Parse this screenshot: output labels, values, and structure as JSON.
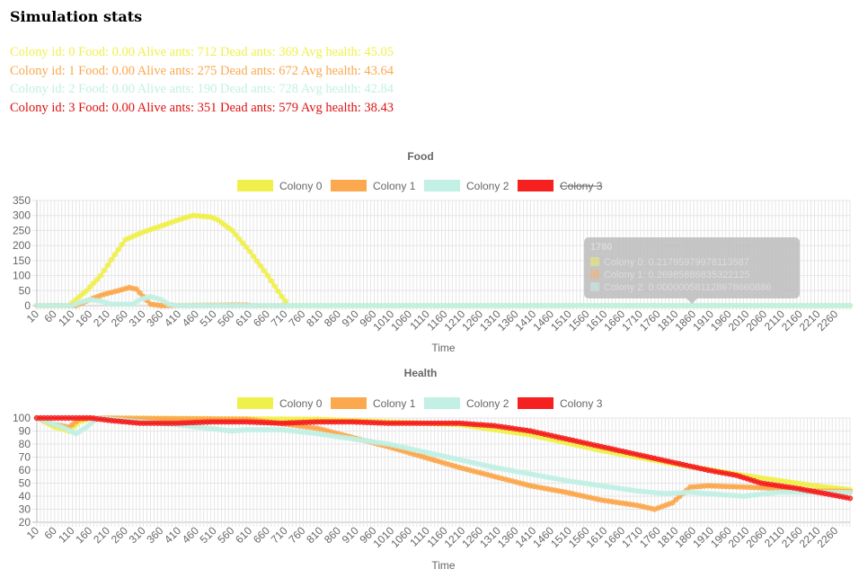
{
  "page": {
    "title": "Simulation stats"
  },
  "colors": {
    "c0": "#f0f04c",
    "c1": "#fba84e",
    "c2": "#c2f0e4",
    "c3": "#f52020"
  },
  "colonies": [
    {
      "text": "Colony id: 0 Food: 0.00 Alive ants: 712 Dead ants: 369 Avg health: 45.05",
      "color": "#f0f04c"
    },
    {
      "text": "Colony id: 1 Food: 0.00 Alive ants: 275 Dead ants: 672 Avg health: 43.64",
      "color": "#fba84e"
    },
    {
      "text": "Colony id: 2 Food: 0.00 Alive ants: 190 Dead ants: 728 Avg health: 42.84",
      "color": "#c2f0e4"
    },
    {
      "text": "Colony id: 3 Food: 0.00 Alive ants: 351 Dead ants: 579 Avg health: 38.43",
      "color": "#e01010"
    }
  ],
  "chart_data": [
    {
      "type": "line",
      "title": "Food",
      "xlabel": "Time",
      "ylabel": "",
      "ylim": [
        0,
        350
      ],
      "ytick_step": 50,
      "x_range": [
        10,
        2300
      ],
      "x_step": 10,
      "x_label_step": 50,
      "legend_position": "top",
      "grid": true,
      "series": [
        {
          "name": "Colony 0",
          "color": "#f0f04c",
          "hidden": false,
          "points": [
            [
              10,
              0
            ],
            [
              100,
              0
            ],
            [
              120,
              20
            ],
            [
              150,
              50
            ],
            [
              190,
              100
            ],
            [
              230,
              170
            ],
            [
              260,
              220
            ],
            [
              310,
              245
            ],
            [
              360,
              265
            ],
            [
              420,
              290
            ],
            [
              450,
              300
            ],
            [
              500,
              295
            ],
            [
              520,
              285
            ],
            [
              560,
              250
            ],
            [
              610,
              180
            ],
            [
              660,
              100
            ],
            [
              700,
              30
            ],
            [
              720,
              0
            ],
            [
              2300,
              0
            ]
          ]
        },
        {
          "name": "Colony 1",
          "color": "#fba84e",
          "hidden": false,
          "points": [
            [
              10,
              0
            ],
            [
              120,
              0
            ],
            [
              140,
              10
            ],
            [
              170,
              25
            ],
            [
              200,
              38
            ],
            [
              240,
              50
            ],
            [
              270,
              60
            ],
            [
              290,
              55
            ],
            [
              310,
              30
            ],
            [
              330,
              5
            ],
            [
              360,
              0
            ],
            [
              600,
              2
            ],
            [
              620,
              0
            ],
            [
              710,
              0
            ]
          ]
        },
        {
          "name": "Colony 2",
          "color": "#c2f0e4",
          "hidden": false,
          "points": [
            [
              10,
              0
            ],
            [
              110,
              0
            ],
            [
              130,
              10
            ],
            [
              160,
              20
            ],
            [
              190,
              15
            ],
            [
              220,
              5
            ],
            [
              280,
              5
            ],
            [
              300,
              20
            ],
            [
              330,
              30
            ],
            [
              360,
              20
            ],
            [
              380,
              5
            ],
            [
              400,
              0
            ],
            [
              2300,
              0
            ]
          ]
        },
        {
          "name": "Colony 3",
          "color": "#f52020",
          "hidden": true,
          "points": []
        }
      ],
      "tooltip": {
        "title": "1780",
        "lines": [
          "Colony 0: 0.21795979978113587",
          "Colony 1: 0.26985886835322125",
          "Colony 2: 0.000000581128678660886"
        ]
      }
    },
    {
      "type": "line",
      "title": "Health",
      "xlabel": "Time",
      "ylabel": "",
      "ylim": [
        20,
        100
      ],
      "ytick_step": 10,
      "x_range": [
        10,
        2300
      ],
      "x_step": 10,
      "x_label_step": 50,
      "legend_position": "top",
      "grid": true,
      "series": [
        {
          "name": "Colony 0",
          "color": "#f0f04c",
          "hidden": false,
          "points": [
            [
              10,
              100
            ],
            [
              60,
              93
            ],
            [
              100,
              90
            ],
            [
              130,
              97
            ],
            [
              160,
              100
            ],
            [
              800,
              99
            ],
            [
              1000,
              97
            ],
            [
              1200,
              95
            ],
            [
              1400,
              87
            ],
            [
              1600,
              75
            ],
            [
              1800,
              65
            ],
            [
              2000,
              56
            ],
            [
              2200,
              48
            ],
            [
              2300,
              45
            ]
          ]
        },
        {
          "name": "Colony 1",
          "color": "#fba84e",
          "hidden": false,
          "points": [
            [
              10,
              100
            ],
            [
              60,
              95
            ],
            [
              100,
              93
            ],
            [
              130,
              99
            ],
            [
              160,
              100
            ],
            [
              600,
              99
            ],
            [
              720,
              95
            ],
            [
              800,
              92
            ],
            [
              900,
              85
            ],
            [
              1000,
              78
            ],
            [
              1100,
              70
            ],
            [
              1200,
              62
            ],
            [
              1300,
              55
            ],
            [
              1400,
              48
            ],
            [
              1500,
              43
            ],
            [
              1600,
              37
            ],
            [
              1700,
              33
            ],
            [
              1750,
              30
            ],
            [
              1800,
              35
            ],
            [
              1850,
              47
            ],
            [
              1900,
              48
            ],
            [
              2000,
              47
            ],
            [
              2100,
              46
            ],
            [
              2200,
              44
            ],
            [
              2300,
              43.6
            ]
          ]
        },
        {
          "name": "Colony 2",
          "color": "#c2f0e4",
          "hidden": false,
          "points": [
            [
              10,
              100
            ],
            [
              60,
              95
            ],
            [
              90,
              92
            ],
            [
              120,
              88
            ],
            [
              150,
              93
            ],
            [
              180,
              100
            ],
            [
              300,
              97
            ],
            [
              400,
              95
            ],
            [
              560,
              90
            ],
            [
              600,
              91
            ],
            [
              700,
              91
            ],
            [
              800,
              88
            ],
            [
              900,
              84
            ],
            [
              1000,
              80
            ],
            [
              1100,
              74
            ],
            [
              1200,
              68
            ],
            [
              1300,
              62
            ],
            [
              1400,
              57
            ],
            [
              1500,
              52
            ],
            [
              1600,
              48
            ],
            [
              1700,
              44
            ],
            [
              1780,
              42
            ],
            [
              1850,
              43
            ],
            [
              2000,
              40
            ],
            [
              2100,
              43
            ],
            [
              2200,
              43
            ],
            [
              2300,
              42.8
            ]
          ]
        },
        {
          "name": "Colony 3",
          "color": "#f52020",
          "hidden": false,
          "points": [
            [
              10,
              100
            ],
            [
              100,
              100
            ],
            [
              160,
              100
            ],
            [
              220,
              98
            ],
            [
              300,
              96
            ],
            [
              400,
              96
            ],
            [
              500,
              97
            ],
            [
              600,
              97
            ],
            [
              700,
              96
            ],
            [
              800,
              97
            ],
            [
              900,
              97
            ],
            [
              1000,
              96
            ],
            [
              1100,
              96
            ],
            [
              1200,
              96
            ],
            [
              1300,
              94
            ],
            [
              1400,
              90
            ],
            [
              1500,
              84
            ],
            [
              1600,
              78
            ],
            [
              1700,
              72
            ],
            [
              1800,
              66
            ],
            [
              1900,
              60
            ],
            [
              1980,
              56
            ],
            [
              2050,
              50
            ],
            [
              2150,
              46
            ],
            [
              2250,
              41
            ],
            [
              2300,
              38.4
            ]
          ]
        }
      ]
    }
  ]
}
